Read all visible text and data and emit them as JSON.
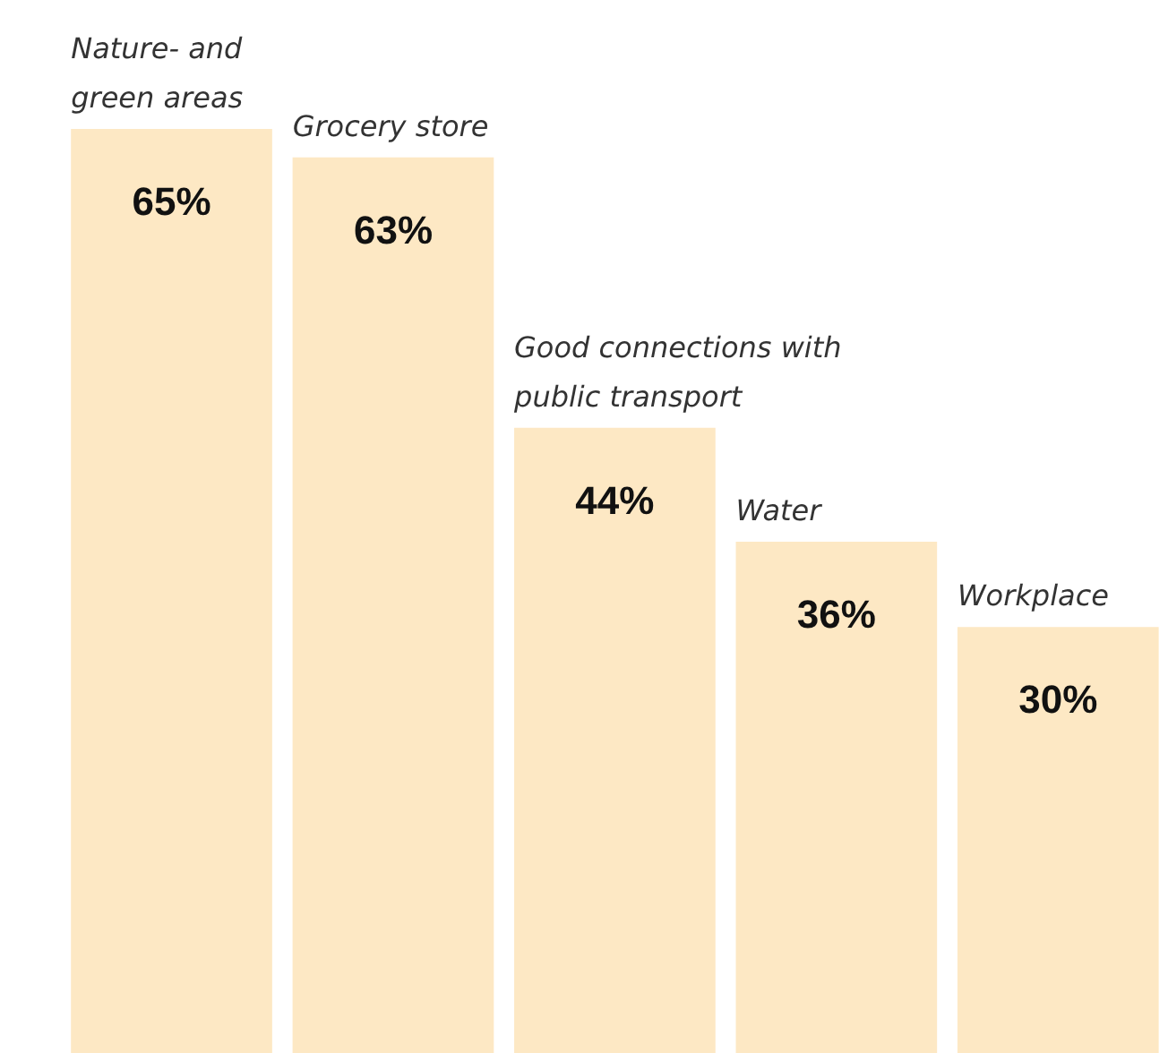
{
  "chart_data": {
    "type": "bar",
    "categories": [
      "Nature- and\ngreen areas",
      "Grocery store",
      "Good connections with\npublic transport",
      "Water",
      "Workplace"
    ],
    "values": [
      65,
      63,
      44,
      36,
      30
    ],
    "value_labels": [
      "65%",
      "63%",
      "44%",
      "36%",
      "30%"
    ],
    "color": "#fde8c4",
    "ylim": [
      0,
      74
    ],
    "tick_labels": false,
    "grid": false
  }
}
